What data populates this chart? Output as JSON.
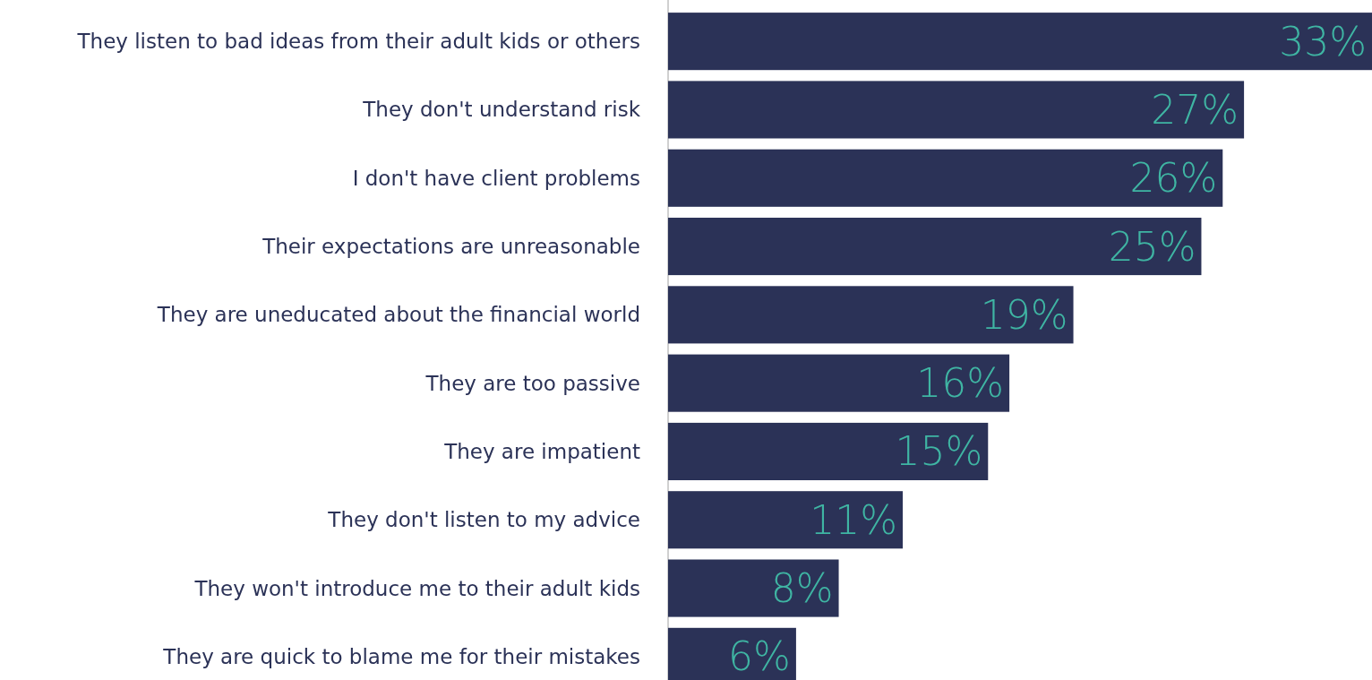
{
  "chart_data": {
    "type": "bar",
    "orientation": "horizontal",
    "categories": [
      "They listen to bad ideas from their adult kids or others",
      "They don't understand risk",
      "I don't have client problems",
      "Their expectations are unreasonable",
      "They are uneducated about the financial world",
      "They are too passive",
      "They are impatient",
      "They don't listen to my advice",
      "They won't introduce me to their adult kids",
      "They are quick to blame me for their mistakes"
    ],
    "values": [
      33,
      27,
      26,
      25,
      19,
      16,
      15,
      11,
      8,
      6
    ],
    "value_labels": [
      "33%",
      "27%",
      "26%",
      "25%",
      "19%",
      "16%",
      "15%",
      "11%",
      "8%",
      "6%"
    ],
    "color": "#2b3257"
  }
}
